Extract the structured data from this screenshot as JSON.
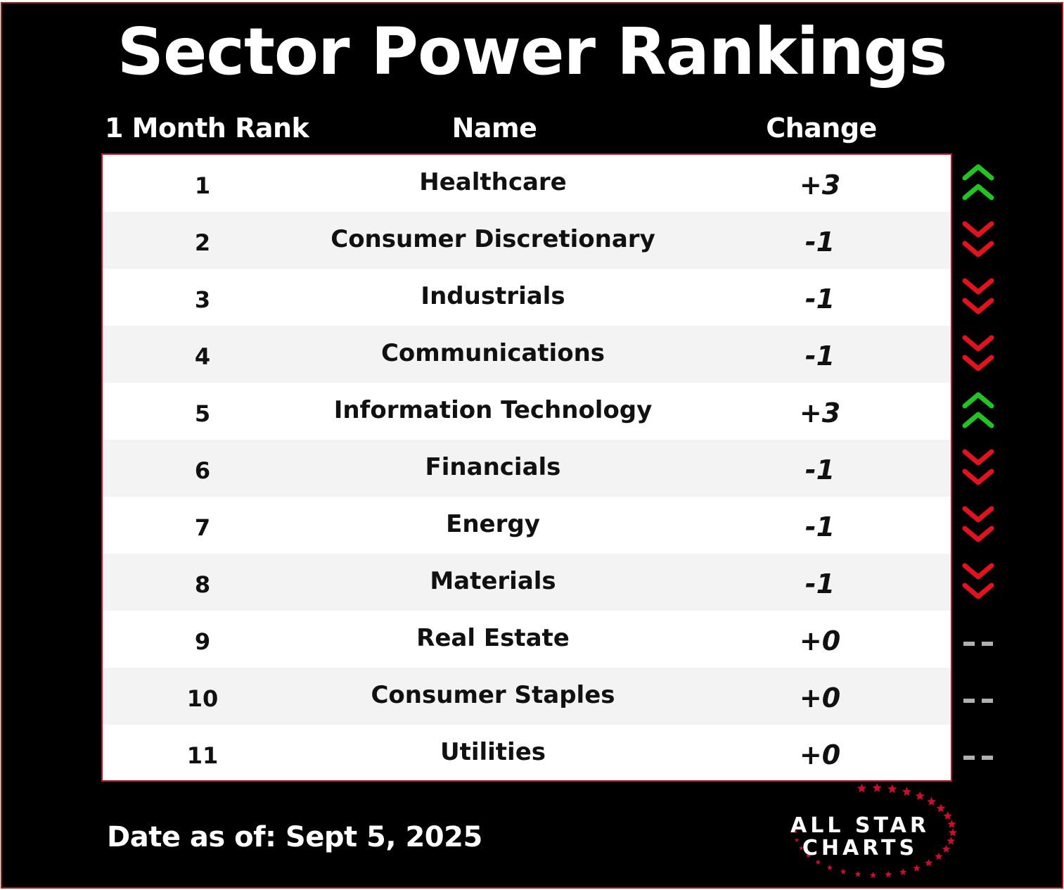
{
  "title": "Sector Power Rankings",
  "columns": {
    "rank": "1 Month Rank",
    "name": "Name",
    "change": "Change"
  },
  "rows": [
    {
      "rank": "1",
      "name": "Healthcare",
      "change": "+3",
      "direction": "up"
    },
    {
      "rank": "2",
      "name": "Consumer Discretionary",
      "change": "-1",
      "direction": "down"
    },
    {
      "rank": "3",
      "name": "Industrials",
      "change": "-1",
      "direction": "down"
    },
    {
      "rank": "4",
      "name": "Communications",
      "change": "-1",
      "direction": "down"
    },
    {
      "rank": "5",
      "name": "Information Technology",
      "change": "+3",
      "direction": "up"
    },
    {
      "rank": "6",
      "name": "Financials",
      "change": "-1",
      "direction": "down"
    },
    {
      "rank": "7",
      "name": "Energy",
      "change": "-1",
      "direction": "down"
    },
    {
      "rank": "8",
      "name": "Materials",
      "change": "-1",
      "direction": "down"
    },
    {
      "rank": "9",
      "name": "Real Estate",
      "change": "+0",
      "direction": "flat"
    },
    {
      "rank": "10",
      "name": "Consumer Staples",
      "change": "+0",
      "direction": "flat"
    },
    {
      "rank": "11",
      "name": "Utilities",
      "change": "+0",
      "direction": "flat"
    }
  ],
  "footer": {
    "date": "Date as of: Sept 5, 2025"
  },
  "logo": {
    "line1": "ALL STAR",
    "line2": "CHARTS"
  },
  "colors": {
    "background": "#000000",
    "accent": "#c8102e",
    "up": "#22c322",
    "down": "#e0141e",
    "flat": "#b0b0b0"
  }
}
